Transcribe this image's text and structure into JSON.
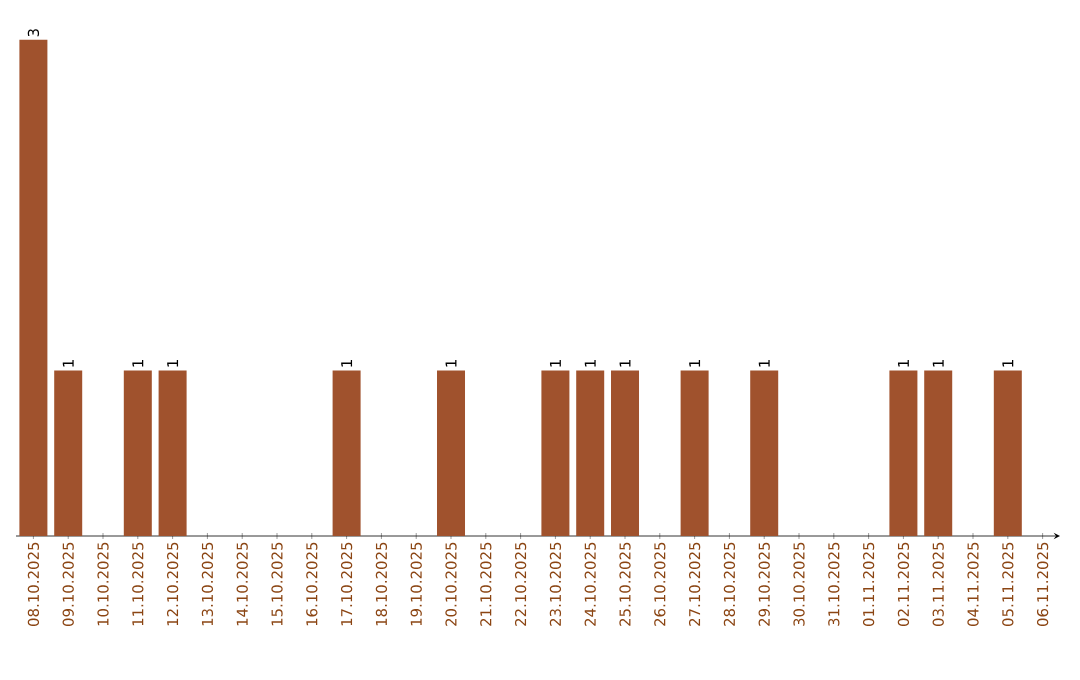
{
  "chart_data": {
    "type": "bar",
    "color": "#a0522d",
    "categories": [
      "08.10.2025",
      "09.10.2025",
      "10.10.2025",
      "11.10.2025",
      "12.10.2025",
      "13.10.2025",
      "14.10.2025",
      "15.10.2025",
      "16.10.2025",
      "17.10.2025",
      "18.10.2025",
      "19.10.2025",
      "20.10.2025",
      "21.10.2025",
      "22.10.2025",
      "23.10.2025",
      "24.10.2025",
      "25.10.2025",
      "26.10.2025",
      "27.10.2025",
      "28.10.2025",
      "29.10.2025",
      "30.10.2025",
      "31.10.2025",
      "01.11.2025",
      "02.11.2025",
      "03.11.2025",
      "04.11.2025",
      "05.11.2025",
      "06.11.2025"
    ],
    "values": [
      3,
      1,
      0,
      1,
      1,
      0,
      0,
      0,
      0,
      1,
      0,
      0,
      1,
      0,
      0,
      1,
      1,
      1,
      0,
      1,
      0,
      1,
      0,
      0,
      0,
      1,
      1,
      0,
      1,
      0
    ],
    "value_labels": [
      "3",
      "1",
      null,
      "1",
      "1",
      null,
      null,
      null,
      null,
      "1",
      null,
      null,
      "1",
      null,
      null,
      "1",
      "1",
      "1",
      null,
      "1",
      null,
      "1",
      null,
      null,
      null,
      "1",
      "1",
      null,
      "1",
      null
    ],
    "ylim": [
      0,
      3
    ]
  }
}
